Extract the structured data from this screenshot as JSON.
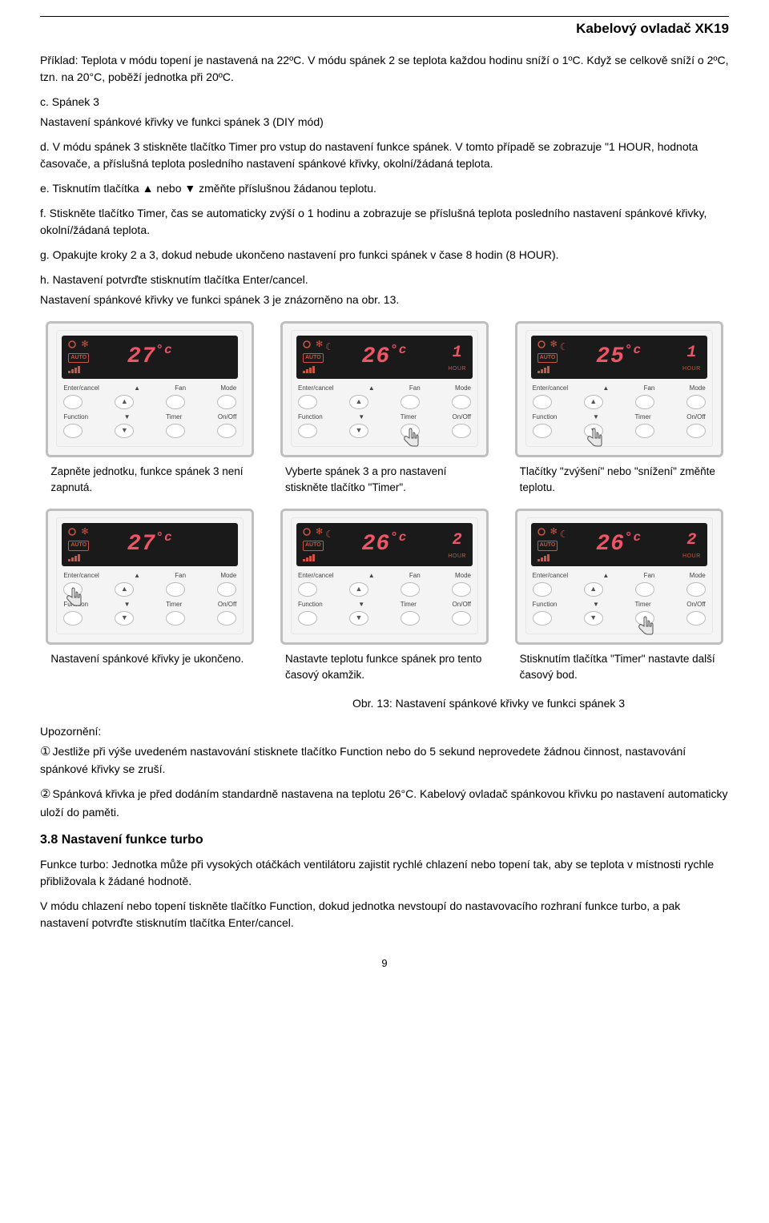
{
  "header": {
    "title": "Kabelový ovladač XK19"
  },
  "body": {
    "p1": "Příklad: Teplota v módu topení je nastavená na 22ºC. V módu spánek 2 se teplota každou hodinu sníží o 1ºC. Když se celkově sníží o 2ºC, tzn. na 20°C, poběží jednotka při 20ºC.",
    "p2a": "c. Spánek 3",
    "p2b": "Nastavení spánkové křivky ve funkci spánek 3 (DIY mód)",
    "p3": "d. V módu spánek 3 stiskněte tlačítko Timer pro vstup do nastavení funkce spánek. V tomto případě se zobrazuje \"1 HOUR, hodnota časovače, a příslušná teplota posledního nastavení spánkové křivky, okolní/žádaná teplota.",
    "p4": "e. Tisknutím tlačítka ▲ nebo ▼ změňte příslušnou žádanou teplotu.",
    "p5": "f. Stiskněte tlačítko Timer, čas se automaticky zvýší o 1 hodinu a zobrazuje se příslušná teplota posledního nastavení spánkové křivky, okolní/žádaná teplota.",
    "p6": "g. Opakujte kroky 2 a 3, dokud nebude ukončeno nastavení pro funkci spánek v čase 8 hodin (8 HOUR).",
    "p7": "h. Nastavení potvrďte stisknutím tlačítka Enter/cancel.",
    "p8": "Nastavení spánkové křivky ve funkci spánek 3 je znázorněno na obr. 13."
  },
  "panel_labels": {
    "row1": [
      "Enter/cancel",
      "▲",
      "Fan",
      "Mode"
    ],
    "row2": [
      "Function",
      "▼",
      "Timer",
      "On/Off"
    ],
    "auto": "AUTO",
    "hour": "HOUR"
  },
  "panels": [
    {
      "temp": "27",
      "hour": "",
      "moon": false,
      "hand_btn": null
    },
    {
      "temp": "26",
      "hour": "1",
      "moon": true,
      "hand_btn": "timer"
    },
    {
      "temp": "25",
      "hour": "1",
      "moon": true,
      "hand_btn": "down"
    },
    {
      "temp": "27",
      "hour": "",
      "moon": false,
      "hand_btn": "enter"
    },
    {
      "temp": "26",
      "hour": "2",
      "moon": true,
      "hand_btn": null
    },
    {
      "temp": "26",
      "hour": "2",
      "moon": true,
      "hand_btn": "timer"
    }
  ],
  "captions": [
    "Zapněte jednotku, funkce spánek 3 není zapnutá.",
    "Vyberte spánek 3 a pro nastavení stiskněte tlačítko \"Timer\".",
    "Tlačítky \"zvýšení\" nebo \"snížení\" změňte teplotu.",
    "Nastavení spánkové křivky je ukončeno.",
    "Nastavte teplotu funkce spánek pro tento časový okamžik.",
    "Stisknutím tlačítka \"Timer\" nastavte další časový bod."
  ],
  "fig": "Obr. 13: Nastavení spánkové křivky ve funkci spánek 3",
  "notice": {
    "title": "Upozornění:",
    "n1": "Jestliže při výše uvedeném nastavování stisknete tlačítko Function nebo do 5 sekund neprovedete žádnou činnost, nastavování spánkové křivky se zruší.",
    "n2": "Spánková křivka je před dodáním standardně nastavena na teplotu 26°C. Kabelový ovladač spánkovou křivku po nastavení automaticky uloží do paměti."
  },
  "section38": {
    "title": "3.8 Nastavení funkce turbo",
    "p1": "Funkce turbo: Jednotka může při vysokých otáčkách ventilátoru zajistit rychlé chlazení nebo topení tak, aby se teplota v místnosti rychle přibližovala k žádané hodnotě.",
    "p2": "V módu chlazení nebo topení tiskněte tlačítko Function, dokud jednotka nevstoupí do nastavovacího rozhraní funkce turbo, a pak nastavení potvrďte stisknutím tlačítka Enter/cancel."
  },
  "page": "9"
}
